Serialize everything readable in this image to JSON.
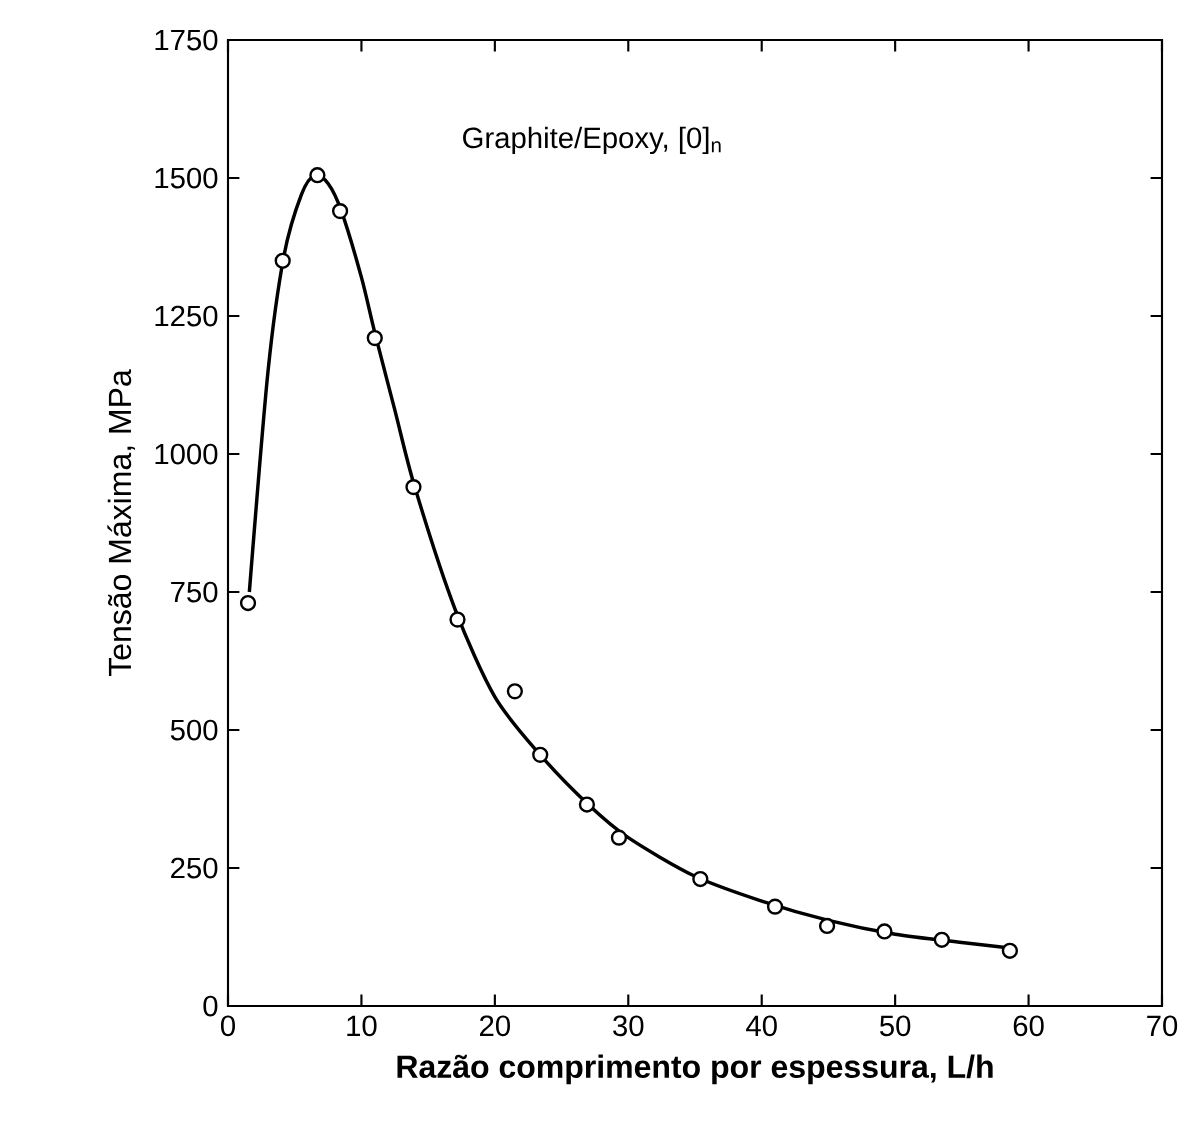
{
  "chart_data": {
    "type": "scatter",
    "xlabel": "**Razão comprimento por espessura, L/h**",
    "ylabel": "Tensão Máxima, MPa",
    "annotations": [
      "Graphite/Epoxy, [0]$_{n}$"
    ],
    "xlim": [
      0,
      70
    ],
    "xticks": [
      0,
      10,
      20,
      30,
      40,
      50,
      60,
      70
    ],
    "ylim": [
      0,
      1750
    ],
    "yticks": [
      0,
      250,
      500,
      750,
      1000,
      1250,
      1500,
      1750
    ],
    "grid": false,
    "series": [
      {
        "type": "line",
        "color": "#000000",
        "marker": "none",
        "line_style": "solid",
        "x": [
          1.6,
          3,
          4.2,
          5.5,
          6.5,
          7.5,
          8.5,
          10,
          11,
          12.5,
          14,
          17,
          20,
          23.4,
          27,
          30,
          35,
          40,
          45,
          50,
          55,
          58.6
        ],
        "values": [
          750,
          1150,
          1360,
          1470,
          1505,
          1490,
          1440,
          1320,
          1220,
          1080,
          940,
          720,
          560,
          455,
          365,
          305,
          235,
          190,
          155,
          130,
          115,
          105
        ]
      },
      {
        "color": "#000000",
        "marker": "circle",
        "x": [
          1.5,
          4.1,
          6.7,
          8.4,
          11.0,
          13.9,
          17.2,
          21.5,
          23.4,
          26.9,
          29.3,
          35.4,
          41.0,
          44.9,
          49.2,
          53.5,
          58.6
        ],
        "values": [
          730,
          1350,
          1505,
          1440,
          1210,
          940,
          700,
          570,
          455,
          365,
          305,
          230,
          180,
          145,
          135,
          120,
          100
        ]
      }
    ]
  }
}
